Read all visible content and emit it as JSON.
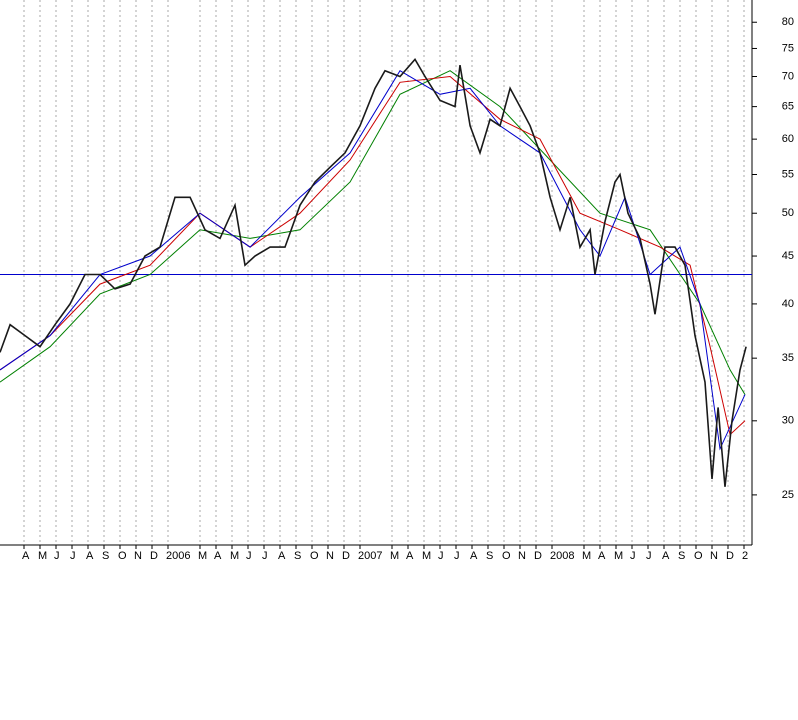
{
  "chart_data": {
    "type": "line",
    "log_scale": true,
    "grid": true,
    "xlim": [
      1.5,
      48.5
    ],
    "ylim": [
      22.1,
      84.5
    ],
    "xticks": [
      {
        "value": 3,
        "label": "A"
      },
      {
        "value": 4,
        "label": "M"
      },
      {
        "value": 5,
        "label": "J"
      },
      {
        "value": 6,
        "label": "J"
      },
      {
        "value": 7,
        "label": "A"
      },
      {
        "value": 8,
        "label": "S"
      },
      {
        "value": 9,
        "label": "O"
      },
      {
        "value": 10,
        "label": "N"
      },
      {
        "value": 11,
        "label": "D"
      },
      {
        "value": 12,
        "label": "2006"
      },
      {
        "value": 14,
        "label": "M"
      },
      {
        "value": 15,
        "label": "A"
      },
      {
        "value": 16,
        "label": "M"
      },
      {
        "value": 17,
        "label": "J"
      },
      {
        "value": 18,
        "label": "J"
      },
      {
        "value": 19,
        "label": "A"
      },
      {
        "value": 20,
        "label": "S"
      },
      {
        "value": 21,
        "label": "O"
      },
      {
        "value": 22,
        "label": "N"
      },
      {
        "value": 23,
        "label": "D"
      },
      {
        "value": 24,
        "label": "2007"
      },
      {
        "value": 26,
        "label": "M"
      },
      {
        "value": 27,
        "label": "A"
      },
      {
        "value": 28,
        "label": "M"
      },
      {
        "value": 29,
        "label": "J"
      },
      {
        "value": 30,
        "label": "J"
      },
      {
        "value": 31,
        "label": "A"
      },
      {
        "value": 32,
        "label": "S"
      },
      {
        "value": 33,
        "label": "O"
      },
      {
        "value": 34,
        "label": "N"
      },
      {
        "value": 35,
        "label": "D"
      },
      {
        "value": 36,
        "label": "2008"
      },
      {
        "value": 38,
        "label": "M"
      },
      {
        "value": 39,
        "label": "A"
      },
      {
        "value": 40,
        "label": "M"
      },
      {
        "value": 41,
        "label": "J"
      },
      {
        "value": 42,
        "label": "J"
      },
      {
        "value": 43,
        "label": "A"
      },
      {
        "value": 44,
        "label": "S"
      },
      {
        "value": 45,
        "label": "O"
      },
      {
        "value": 46,
        "label": "N"
      },
      {
        "value": 47,
        "label": "D"
      },
      {
        "value": 48,
        "label": "2"
      }
    ],
    "yticks": [
      25,
      30,
      35,
      40,
      45,
      50,
      55,
      60,
      65,
      70,
      75,
      80
    ],
    "reference_line": {
      "value": 43,
      "color": "#0000cc"
    },
    "series": [
      {
        "color": "#1a1a1a",
        "x": [
          1.5,
          2.13,
          3.06,
          4,
          4.94,
          5.88,
          6.81,
          7.75,
          8.69,
          9.63,
          10.56,
          11.5,
          12.44,
          13.38,
          14.31,
          15.25,
          16.19,
          16.81,
          17.44,
          18.38,
          19.31,
          20.25,
          21.19,
          22.13,
          23.06,
          24,
          24.94,
          25.56,
          26.5,
          27.44,
          28.06,
          29,
          29.94,
          30.25,
          30.88,
          31.5,
          32.13,
          32.75,
          33.38,
          34,
          34.63,
          35.25,
          35.88,
          36.5,
          37.13,
          37.75,
          38.38,
          38.69,
          39.31,
          39.94,
          40.25,
          40.75,
          41.5,
          42.13,
          42.44,
          43.06,
          43.69,
          44.31,
          44.94,
          45.56,
          46,
          46.38,
          46.81,
          47.25,
          47.75,
          48.13
        ],
        "values": [
          35.5,
          38,
          37,
          36,
          38,
          40,
          43,
          43,
          41.5,
          42,
          45,
          46,
          52,
          52,
          48,
          47,
          51,
          44,
          45,
          46,
          46,
          51,
          54,
          56,
          58,
          62,
          68,
          71,
          70,
          73,
          70,
          66,
          65,
          72,
          62,
          58,
          63,
          62,
          68,
          65,
          62,
          58,
          52,
          48,
          52,
          46,
          48,
          43,
          49,
          54,
          55,
          50,
          47,
          42,
          39,
          46,
          46,
          44,
          37,
          33,
          26,
          31,
          25.5,
          30,
          34,
          36
        ]
      },
      {
        "color": "#0000cc",
        "x": [
          1.5,
          4.63,
          7.75,
          10.88,
          14,
          17.13,
          20.25,
          23.38,
          26.5,
          29,
          30.88,
          32.75,
          35.25,
          37.75,
          39,
          40.56,
          42.13,
          44,
          45.25,
          46.5,
          48.06
        ],
        "values": [
          34,
          37,
          43,
          45,
          50,
          46,
          52,
          58,
          71,
          67,
          68,
          62,
          58,
          48,
          45,
          52,
          43,
          46,
          40,
          28,
          32
        ]
      },
      {
        "color": "#cc0000",
        "x": [
          1.5,
          4.63,
          7.75,
          10.88,
          14,
          17.13,
          20.25,
          23.38,
          26.5,
          29.63,
          32.75,
          35.25,
          37.75,
          40.25,
          42.75,
          44.63,
          45.88,
          47.13,
          48.06
        ],
        "values": [
          34,
          37,
          42,
          44,
          50,
          46,
          50,
          57,
          69,
          70,
          63,
          60,
          50,
          48,
          46,
          44,
          36,
          29,
          30
        ]
      },
      {
        "color": "#008000",
        "x": [
          1.5,
          4.63,
          7.75,
          10.88,
          14,
          17.13,
          20.25,
          23.38,
          26.5,
          29.63,
          32.75,
          35.88,
          39,
          42.13,
          45.25,
          47.13,
          48.06
        ],
        "values": [
          33,
          36,
          41,
          43,
          48,
          47,
          48,
          54,
          67,
          71,
          65,
          57,
          50,
          48,
          40,
          34,
          32
        ]
      }
    ]
  }
}
